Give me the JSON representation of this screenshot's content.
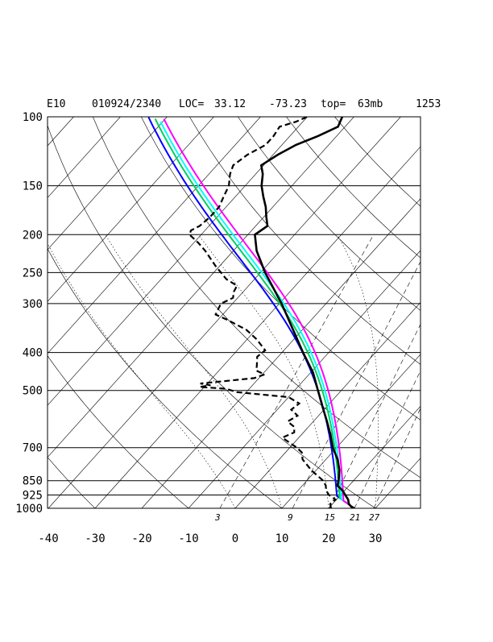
{
  "header": {
    "station": "E10",
    "datetime": "010924/2340",
    "loc_label": "LOC=",
    "lat": "33.12",
    "lon": "-73.23",
    "top_label": "top=",
    "top_value": "63mb",
    "count": "1253"
  },
  "chart_data": {
    "type": "skew-t",
    "pressure_ticks": [
      1000,
      925,
      850,
      700,
      500,
      400,
      300,
      250,
      200,
      150,
      100
    ],
    "pressure_tick_labels": [
      "1000",
      "925",
      "850",
      "700",
      "500",
      "400",
      "300",
      "250",
      "200",
      "150",
      "100"
    ],
    "temperature_ticks": [
      -40,
      -30,
      -20,
      -10,
      0,
      10,
      20,
      30
    ],
    "temperature_tick_labels": [
      "-40",
      "-30",
      "-20",
      "-10",
      "0",
      "10",
      "20",
      "30"
    ],
    "mixing_ratio_labels": [
      "3",
      "9",
      "15",
      "21",
      "27"
    ],
    "mixing_ratio_values_gkg": [
      3,
      9,
      15,
      21,
      27
    ],
    "plim_hpa": [
      1000,
      100
    ],
    "tlim_bottom_c": [
      -40,
      40
    ],
    "temperature_profile": [
      {
        "p": 1000,
        "t": 25.5
      },
      {
        "p": 990,
        "t": 24.5
      },
      {
        "p": 975,
        "t": 23.5
      },
      {
        "p": 950,
        "t": 22.5
      },
      {
        "p": 925,
        "t": 21.0
      },
      {
        "p": 900,
        "t": 19.5
      },
      {
        "p": 875,
        "t": 17.5
      },
      {
        "p": 850,
        "t": 16.8
      },
      {
        "p": 800,
        "t": 15.0
      },
      {
        "p": 750,
        "t": 12.5
      },
      {
        "p": 700,
        "t": 9.2
      },
      {
        "p": 650,
        "t": 6.3
      },
      {
        "p": 600,
        "t": 2.9
      },
      {
        "p": 550,
        "t": -0.9
      },
      {
        "p": 500,
        "t": -5.0
      },
      {
        "p": 450,
        "t": -9.5
      },
      {
        "p": 400,
        "t": -15.5
      },
      {
        "p": 350,
        "t": -22.0
      },
      {
        "p": 300,
        "t": -29.5
      },
      {
        "p": 250,
        "t": -39.0
      },
      {
        "p": 220,
        "t": -45.0
      },
      {
        "p": 200,
        "t": -48.5
      },
      {
        "p": 195,
        "t": -48.0
      },
      {
        "p": 190,
        "t": -47.5
      },
      {
        "p": 180,
        "t": -49.5
      },
      {
        "p": 170,
        "t": -51.5
      },
      {
        "p": 160,
        "t": -54.0
      },
      {
        "p": 150,
        "t": -56.5
      },
      {
        "p": 140,
        "t": -58.5
      },
      {
        "p": 133,
        "t": -60.5
      },
      {
        "p": 125,
        "t": -59.0
      },
      {
        "p": 118,
        "t": -57.0
      },
      {
        "p": 112,
        "t": -54.0
      },
      {
        "p": 106,
        "t": -51.5
      },
      {
        "p": 100,
        "t": -52.5
      }
    ],
    "dewpoint_profile": [
      {
        "p": 1000,
        "t": 20.5
      },
      {
        "p": 975,
        "t": 19.5
      },
      {
        "p": 950,
        "t": 19.8
      },
      {
        "p": 925,
        "t": 17.5
      },
      {
        "p": 900,
        "t": 16.0
      },
      {
        "p": 875,
        "t": 15.0
      },
      {
        "p": 850,
        "t": 13.5
      },
      {
        "p": 800,
        "t": 9.0
      },
      {
        "p": 750,
        "t": 5.0
      },
      {
        "p": 720,
        "t": 3.5
      },
      {
        "p": 700,
        "t": 1.5
      },
      {
        "p": 680,
        "t": -1.0
      },
      {
        "p": 660,
        "t": -3.5
      },
      {
        "p": 640,
        "t": -2.0
      },
      {
        "p": 620,
        "t": -3.0
      },
      {
        "p": 600,
        "t": -5.5
      },
      {
        "p": 580,
        "t": -4.5
      },
      {
        "p": 560,
        "t": -7.0
      },
      {
        "p": 540,
        "t": -6.5
      },
      {
        "p": 520,
        "t": -10.0
      },
      {
        "p": 505,
        "t": -22.0
      },
      {
        "p": 495,
        "t": -25.0
      },
      {
        "p": 490,
        "t": -31.0
      },
      {
        "p": 485,
        "t": -29.0
      },
      {
        "p": 480,
        "t": -31.5
      },
      {
        "p": 475,
        "t": -28.0
      },
      {
        "p": 465,
        "t": -21.0
      },
      {
        "p": 455,
        "t": -19.5
      },
      {
        "p": 445,
        "t": -22.0
      },
      {
        "p": 430,
        "t": -23.0
      },
      {
        "p": 410,
        "t": -24.5
      },
      {
        "p": 395,
        "t": -24.0
      },
      {
        "p": 370,
        "t": -28.0
      },
      {
        "p": 350,
        "t": -32.0
      },
      {
        "p": 330,
        "t": -38.0
      },
      {
        "p": 320,
        "t": -41.5
      },
      {
        "p": 310,
        "t": -42.0
      },
      {
        "p": 300,
        "t": -42.5
      },
      {
        "p": 290,
        "t": -41.0
      },
      {
        "p": 280,
        "t": -42.0
      },
      {
        "p": 270,
        "t": -42.5
      },
      {
        "p": 260,
        "t": -46.0
      },
      {
        "p": 240,
        "t": -51.0
      },
      {
        "p": 220,
        "t": -56.0
      },
      {
        "p": 210,
        "t": -59.0
      },
      {
        "p": 200,
        "t": -62.5
      },
      {
        "p": 195,
        "t": -63.0
      },
      {
        "p": 190,
        "t": -62.0
      },
      {
        "p": 180,
        "t": -61.5
      },
      {
        "p": 170,
        "t": -61.5
      },
      {
        "p": 160,
        "t": -62.5
      },
      {
        "p": 150,
        "t": -63.5
      },
      {
        "p": 140,
        "t": -65.5
      },
      {
        "p": 133,
        "t": -66.5
      },
      {
        "p": 125,
        "t": -65.5
      },
      {
        "p": 118,
        "t": -63.5
      },
      {
        "p": 112,
        "t": -63.5
      },
      {
        "p": 106,
        "t": -64.0
      },
      {
        "p": 103,
        "t": -61.5
      },
      {
        "p": 100,
        "t": -60.0
      }
    ],
    "parcel_profiles": [
      {
        "color": "#0000ff",
        "start_t": 25.5,
        "start_td": 20.5
      },
      {
        "color": "#00d060",
        "start_t": 25.5,
        "start_td": 21.3
      },
      {
        "color": "#00ffff",
        "start_t": 25.5,
        "start_td": 21.8
      },
      {
        "color": "#ff00ff",
        "start_t": 25.5,
        "start_td": 22.4
      }
    ],
    "line_colors": {
      "temperature": "#000000",
      "dewpoint": "#000000",
      "frame": "#000000"
    }
  }
}
